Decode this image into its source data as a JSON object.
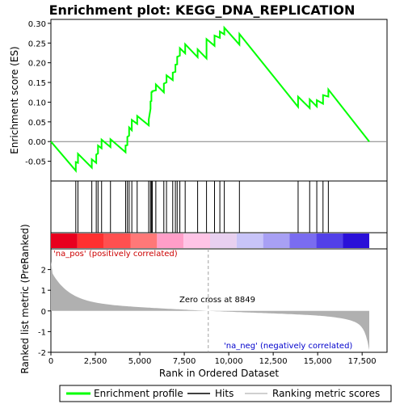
{
  "chart_data": {
    "type": "line",
    "title": "Enrichment plot: KEGG_DNA_REPLICATION",
    "es_panel": {
      "ylabel": "Enrichment score (ES)",
      "ylim": [
        -0.1,
        0.31
      ],
      "yticks": [
        -0.05,
        0.0,
        0.05,
        0.1,
        0.15,
        0.2,
        0.25,
        0.3
      ],
      "ytick_labels": [
        "-0.05",
        "0.00",
        "0.05",
        "0.10",
        "0.15",
        "0.20",
        "0.25",
        "0.30"
      ],
      "series": [
        {
          "name": "Enrichment profile",
          "color": "#00ff00",
          "x": [
            0,
            1400,
            1400,
            1520,
            1520,
            2300,
            2300,
            2550,
            2550,
            2650,
            2650,
            2850,
            2850,
            3350,
            3350,
            4200,
            4200,
            4300,
            4300,
            4400,
            4400,
            4550,
            4550,
            4850,
            4850,
            5500,
            5500,
            5600,
            5600,
            5650,
            5650,
            5700,
            5700,
            5900,
            5900,
            6350,
            6350,
            6500,
            6500,
            6850,
            6850,
            7000,
            7000,
            7100,
            7100,
            7250,
            7250,
            7550,
            7550,
            8250,
            8250,
            8750,
            8750,
            9200,
            9200,
            9500,
            9500,
            9750,
            9750,
            10600,
            10600,
            13900,
            13900,
            14550,
            14550,
            14950,
            14950,
            15300,
            15300,
            15600,
            15600,
            17900
          ],
          "y": [
            0.0,
            -0.074,
            -0.052,
            -0.054,
            -0.031,
            -0.066,
            -0.045,
            -0.054,
            -0.033,
            -0.03,
            -0.01,
            -0.017,
            0.005,
            -0.014,
            0.006,
            -0.027,
            -0.01,
            -0.009,
            0.012,
            0.015,
            0.036,
            0.029,
            0.055,
            0.045,
            0.065,
            0.041,
            0.056,
            0.083,
            0.102,
            0.103,
            0.125,
            0.126,
            0.128,
            0.13,
            0.145,
            0.125,
            0.147,
            0.15,
            0.168,
            0.156,
            0.175,
            0.177,
            0.195,
            0.196,
            0.215,
            0.218,
            0.237,
            0.224,
            0.247,
            0.214,
            0.234,
            0.211,
            0.26,
            0.243,
            0.269,
            0.263,
            0.279,
            0.272,
            0.289,
            0.246,
            0.273,
            0.088,
            0.114,
            0.085,
            0.107,
            0.089,
            0.105,
            0.096,
            0.118,
            0.114,
            0.132,
            0.0
          ]
        }
      ]
    },
    "hits": [
      1400,
      1520,
      2300,
      2550,
      2650,
      2850,
      3350,
      4200,
      4300,
      4400,
      4550,
      4850,
      5500,
      5600,
      5650,
      5700,
      5900,
      6350,
      6500,
      6850,
      7000,
      7100,
      7250,
      7550,
      8250,
      8750,
      9200,
      9500,
      9750,
      10600,
      13900,
      14550,
      14950,
      15300,
      15600
    ],
    "heatmap_colors": [
      "#e8001e",
      "#ff3030",
      "#ff5050",
      "#ff7878",
      "#ff9ec8",
      "#ffc4e6",
      "#e8d0f0",
      "#c8c4f8",
      "#a8a0f4",
      "#7a6cf0",
      "#5240e8",
      "#2a10d8"
    ],
    "metric_panel": {
      "ylabel": "Ranked list metric (PreRanked)",
      "ylim": [
        -2,
        3
      ],
      "yticks": [
        -2,
        -1,
        0,
        1,
        2
      ],
      "ytick_labels": [
        "-2",
        "-1",
        "0",
        "1",
        "2"
      ],
      "pos_label": "'na_pos' (positively correlated)",
      "neg_label": "'na_neg' (negatively correlated)",
      "zero_cross_label": "Zero cross at 8849",
      "zero_cross": 8849
    },
    "xaxis": {
      "xlabel": "Rank in Ordered Dataset",
      "xlim": [
        0,
        18900
      ],
      "xticks": [
        0,
        2500,
        5000,
        7500,
        10000,
        12500,
        15000,
        17500
      ],
      "xtick_labels": [
        "0",
        "2,500",
        "5,000",
        "7,500",
        "10,000",
        "12,500",
        "15,000",
        "17,500"
      ],
      "n_genes": 17900
    },
    "legend": {
      "position": "bottom",
      "items": [
        {
          "label": "Enrichment profile",
          "color": "#00ff00"
        },
        {
          "label": "Hits",
          "color": "#000000"
        },
        {
          "label": "Ranking metric scores",
          "color": "#c0c0c0"
        }
      ]
    }
  }
}
